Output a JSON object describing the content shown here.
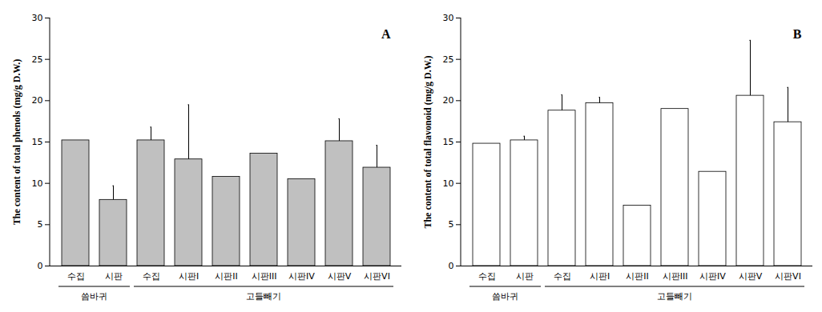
{
  "chart_data": [
    {
      "type": "bar",
      "annotation": "A",
      "y_label": "The content of total phenols (mg/g D.W.)",
      "categories": [
        "수집",
        "시판",
        "수집",
        "시판I",
        "시판II",
        "시판III",
        "시판IV",
        "시판V",
        "시판VI"
      ],
      "values": [
        15.2,
        8.0,
        15.2,
        12.9,
        10.8,
        13.6,
        10.5,
        15.1,
        11.9
      ],
      "errors": [
        null,
        1.7,
        1.6,
        6.6,
        null,
        null,
        null,
        2.7,
        2.7
      ],
      "groups": [
        {
          "label": "씀바귀",
          "start": 0,
          "end": 1
        },
        {
          "label": "고들빼기",
          "start": 2,
          "end": 8
        }
      ],
      "color": "#c0c0c0",
      "ylim": [
        0,
        30
      ],
      "yticks": [
        0,
        5,
        10,
        15,
        20,
        25,
        30
      ]
    },
    {
      "type": "bar",
      "annotation": "B",
      "y_label": "The content of total flavonoid (mg/g D.W.)",
      "categories": [
        "수집",
        "시판",
        "수집",
        "시판I",
        "시판II",
        "시판III",
        "시판IV",
        "시판V",
        "시판VI"
      ],
      "values": [
        14.8,
        15.2,
        18.8,
        19.7,
        7.3,
        19.0,
        11.4,
        20.6,
        17.4
      ],
      "errors": [
        null,
        0.5,
        1.9,
        0.7,
        null,
        null,
        null,
        6.7,
        4.2
      ],
      "groups": [
        {
          "label": "씀바귀",
          "start": 0,
          "end": 1
        },
        {
          "label": "고들빼기",
          "start": 2,
          "end": 8
        }
      ],
      "color": "#ffffff",
      "ylim": [
        0,
        30
      ],
      "yticks": [
        0,
        5,
        10,
        15,
        20,
        25,
        30
      ]
    }
  ]
}
